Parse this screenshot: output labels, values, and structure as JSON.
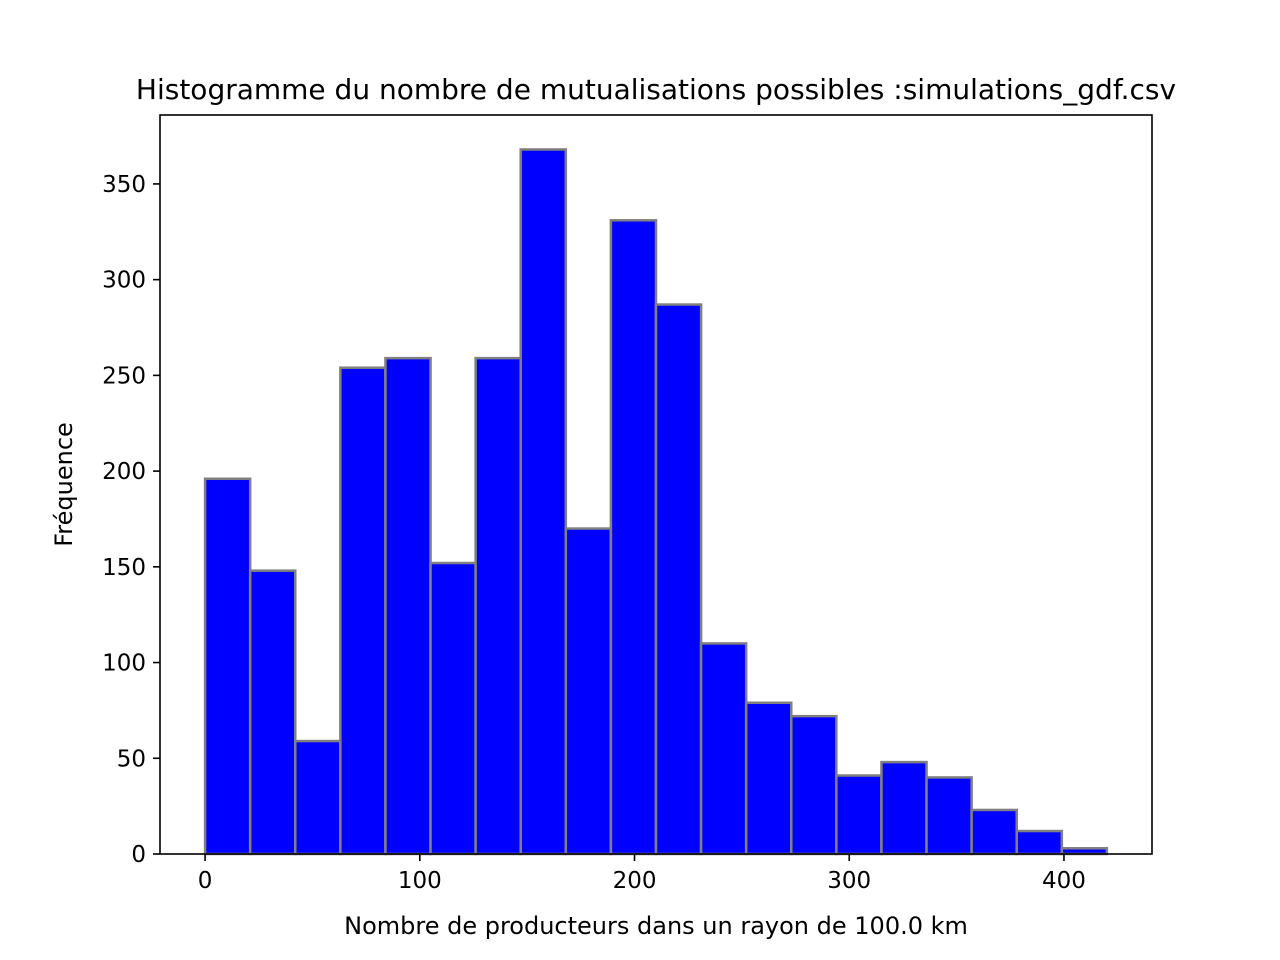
{
  "chart_data": {
    "type": "bar",
    "title": "Histogramme du nombre de mutualisations possibles :simulations_gdf.csv",
    "xlabel": "Nombre de producteurs dans un rayon de 100.0 km",
    "ylabel": "Fréquence",
    "bin_edges": [
      0,
      21,
      42,
      63,
      84,
      105,
      126,
      147,
      168,
      189,
      210,
      231,
      252,
      273,
      294,
      315,
      336,
      357,
      378,
      399,
      420
    ],
    "values": [
      196,
      148,
      59,
      254,
      259,
      152,
      259,
      368,
      170,
      331,
      287,
      110,
      79,
      72,
      41,
      48,
      40,
      23,
      12,
      3
    ],
    "xlim": [
      -21,
      441
    ],
    "ylim": [
      0,
      386
    ],
    "xticks": [
      0,
      100,
      200,
      300,
      400
    ],
    "xtick_labels": [
      "0",
      "100",
      "200",
      "300",
      "400"
    ],
    "yticks": [
      0,
      50,
      100,
      150,
      200,
      250,
      300,
      350
    ],
    "ytick_labels": [
      "0",
      "50",
      "100",
      "150",
      "200",
      "250",
      "300",
      "350"
    ],
    "bar_color": "#0000ff",
    "edge_color": "#808080",
    "grid": false,
    "legend": "none"
  }
}
